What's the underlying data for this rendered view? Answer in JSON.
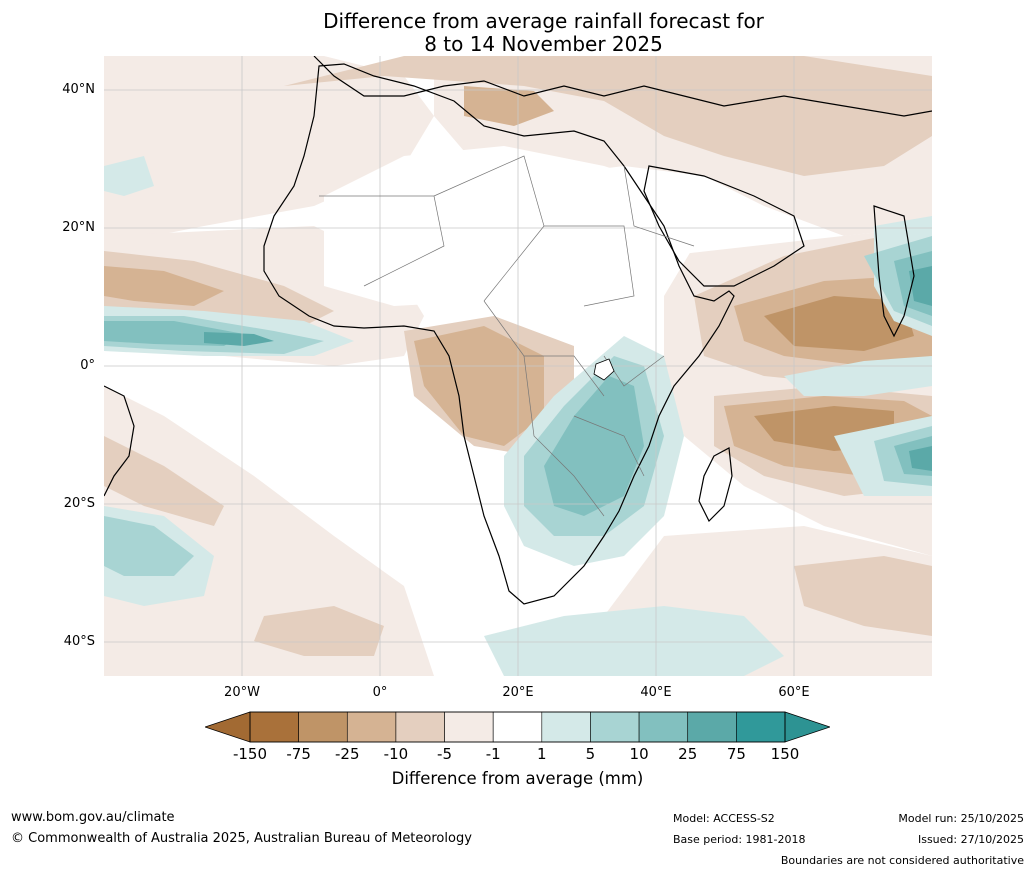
{
  "title": {
    "line1": "Difference from average rainfall forecast for",
    "line2": "8 to 14 November 2025"
  },
  "axes": {
    "lat_labels": [
      "40°N",
      "20°N",
      "0°",
      "20°S",
      "40°S"
    ],
    "lon_labels": [
      "20°W",
      "0°",
      "20°E",
      "40°E",
      "60°E"
    ]
  },
  "colorbar": {
    "ticks": [
      "-150",
      "-75",
      "-25",
      "-10",
      "-5",
      "-1",
      "1",
      "5",
      "10",
      "25",
      "75",
      "150"
    ],
    "colors": [
      "#a9713a",
      "#bf9467",
      "#d5b393",
      "#e4cfbf",
      "#f4ebe6",
      "#ffffff",
      "#d4e9e8",
      "#a8d4d3",
      "#82c0bf",
      "#5ba9a8",
      "#30999a"
    ],
    "extend_low_color": "#a26a33",
    "extend_high_color": "#2d9393",
    "label": "Difference from average (mm)"
  },
  "footer": {
    "website": "www.bom.gov.au/climate",
    "copyright": "© Commonwealth of Australia 2025, Australian Bureau of Meteorology",
    "model": "Model: ACCESS-S2",
    "base_period": "Base period: 1981-2018",
    "model_run": "Model run: 25/10/2025",
    "issued": "Issued: 27/10/2025",
    "disclaimer": "Boundaries are not considered authoritative"
  },
  "map": {
    "region": "Africa and surrounding oceans",
    "longitude_range_deg": [
      -40,
      80
    ],
    "latitude_range_deg": [
      -45,
      45
    ]
  }
}
